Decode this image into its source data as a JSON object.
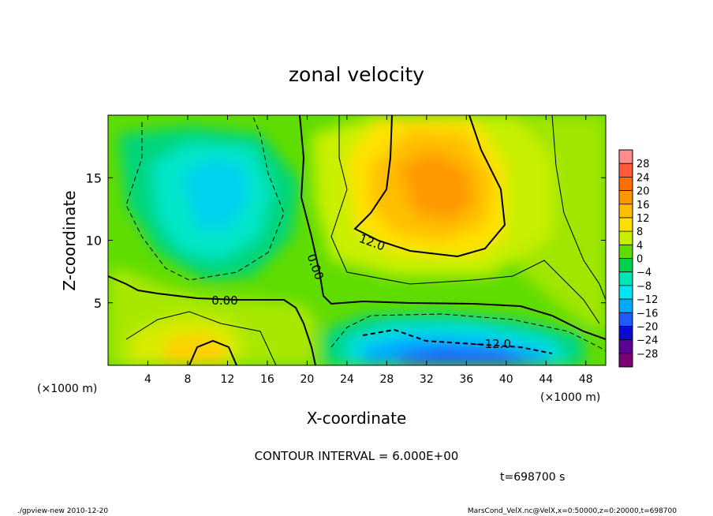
{
  "chart_data": {
    "type": "heatmap",
    "title": "zonal velocity",
    "xlabel": "X-coordinate",
    "ylabel": "Z-coordinate",
    "x_unit": "(×1000 m)",
    "y_unit": "(×1000 m)",
    "xlim": [
      0,
      50
    ],
    "ylim": [
      0,
      20
    ],
    "x_ticks": [
      4,
      8,
      12,
      16,
      20,
      24,
      28,
      32,
      36,
      40,
      44,
      48
    ],
    "y_ticks": [
      5,
      10,
      15
    ],
    "colorbar": {
      "labels": [
        "28",
        "24",
        "20",
        "16",
        "12",
        "8",
        "4",
        "0",
        "−4",
        "−8",
        "−12",
        "−16",
        "−20",
        "−24",
        "−28"
      ],
      "colors": [
        "#ff8c8c",
        "#ff5a3c",
        "#ff6e00",
        "#ff9600",
        "#ffbe00",
        "#ffe100",
        "#c8f000",
        "#5fdc00",
        "#00d250",
        "#00e6b4",
        "#00e6f0",
        "#00aaff",
        "#1e5aff",
        "#0a0ad2",
        "#5a0096",
        "#7a0078"
      ]
    },
    "contour_labels": [
      "12.0",
      "0.00",
      "0.00",
      "−12.0"
    ],
    "contour_interval": "CONTOUR INTERVAL = 6.000E+00",
    "time_label": "t=698700 s",
    "footer_left": "./gpview-new  2010-12-20",
    "footer_right": "MarsCond_VelX.nc@VelX,x=0:50000,z=0:20000,t=698700"
  }
}
